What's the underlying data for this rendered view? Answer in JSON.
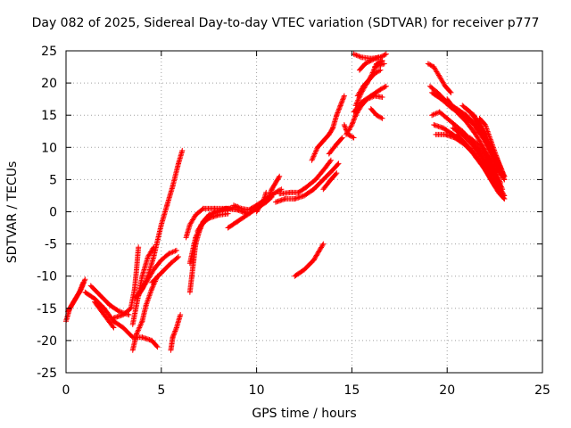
{
  "chart_data": {
    "type": "scatter",
    "title": "Day 082 of 2025, Sidereal Day-to-day VTEC variation (SDTVAR) for receiver p777",
    "xlabel": "GPS time / hours",
    "ylabel": "SDTVAR / TECUs",
    "xlim": [
      0,
      25
    ],
    "ylim": [
      -25,
      25
    ],
    "xticks": [
      "0",
      "5",
      "10",
      "15",
      "20",
      "25"
    ],
    "yticks": [
      "25",
      "20",
      "15",
      "10",
      "5",
      "0",
      "-5",
      "-10",
      "-15",
      "-20",
      "-25"
    ],
    "grid": true,
    "marker": "+",
    "color": "#ff0000",
    "tracks": [
      [
        [
          0.0,
          -17.0
        ],
        [
          0.2,
          -15.0
        ],
        [
          0.5,
          -13.5
        ],
        [
          0.8,
          -12.0
        ],
        [
          1.0,
          -10.5
        ]
      ],
      [
        [
          0.1,
          -15.5
        ],
        [
          0.4,
          -14.0
        ],
        [
          0.7,
          -12.5
        ],
        [
          0.9,
          -11.0
        ]
      ],
      [
        [
          1.0,
          -12.5
        ],
        [
          1.5,
          -13.5
        ],
        [
          2.0,
          -15.0
        ],
        [
          2.5,
          -17.0
        ],
        [
          3.0,
          -18.0
        ],
        [
          3.5,
          -19.5
        ],
        [
          4.0,
          -19.5
        ],
        [
          4.5,
          -20.0
        ],
        [
          4.8,
          -21.0
        ]
      ],
      [
        [
          1.3,
          -11.5
        ],
        [
          1.8,
          -13.0
        ],
        [
          2.3,
          -14.5
        ],
        [
          2.8,
          -15.5
        ],
        [
          3.3,
          -16.0
        ]
      ],
      [
        [
          1.5,
          -14.0
        ],
        [
          2.0,
          -16.0
        ],
        [
          2.5,
          -18.0
        ]
      ],
      [
        [
          2.5,
          -16.5
        ],
        [
          3.0,
          -16.0
        ],
        [
          3.4,
          -15.0
        ],
        [
          3.6,
          -12.0
        ],
        [
          3.7,
          -9.0
        ],
        [
          3.8,
          -5.5
        ]
      ],
      [
        [
          3.5,
          -21.5
        ],
        [
          3.7,
          -19.0
        ],
        [
          4.0,
          -17.0
        ],
        [
          4.2,
          -14.5
        ],
        [
          4.5,
          -12.0
        ],
        [
          4.8,
          -10.0
        ]
      ],
      [
        [
          3.5,
          -17.5
        ],
        [
          3.8,
          -13.0
        ],
        [
          4.0,
          -10.0
        ],
        [
          4.3,
          -7.0
        ],
        [
          4.6,
          -5.5
        ]
      ],
      [
        [
          3.6,
          -13.5
        ],
        [
          4.0,
          -12.0
        ],
        [
          4.3,
          -10.0
        ],
        [
          4.6,
          -7.0
        ],
        [
          4.8,
          -4.5
        ],
        [
          5.0,
          -2.0
        ],
        [
          5.3,
          1.0
        ],
        [
          5.6,
          4.0
        ],
        [
          5.9,
          7.5
        ],
        [
          6.1,
          9.5
        ]
      ],
      [
        [
          3.8,
          -13.0
        ],
        [
          4.2,
          -11.0
        ],
        [
          4.6,
          -9.0
        ],
        [
          5.0,
          -7.5
        ],
        [
          5.4,
          -6.5
        ],
        [
          5.8,
          -6.0
        ]
      ],
      [
        [
          4.5,
          -11.0
        ],
        [
          5.0,
          -9.5
        ],
        [
          5.5,
          -8.0
        ],
        [
          5.9,
          -7.0
        ]
      ],
      [
        [
          5.5,
          -21.5
        ],
        [
          5.6,
          -19.5
        ],
        [
          5.8,
          -18.0
        ],
        [
          6.0,
          -16.0
        ]
      ],
      [
        [
          6.3,
          -4.0
        ],
        [
          6.5,
          -2.0
        ],
        [
          6.8,
          -0.5
        ],
        [
          7.2,
          0.5
        ],
        [
          7.8,
          0.5
        ],
        [
          8.5,
          0.5
        ],
        [
          9.0,
          0.8
        ]
      ],
      [
        [
          6.5,
          -12.5
        ],
        [
          6.6,
          -10.0
        ],
        [
          6.7,
          -7.5
        ],
        [
          6.8,
          -5.0
        ],
        [
          7.0,
          -3.0
        ],
        [
          7.2,
          -1.5
        ],
        [
          7.5,
          -0.5
        ],
        [
          8.0,
          0.0
        ],
        [
          8.5,
          0.2
        ]
      ],
      [
        [
          6.5,
          -8.0
        ],
        [
          6.8,
          -4.0
        ],
        [
          7.1,
          -2.0
        ],
        [
          7.5,
          -1.0
        ],
        [
          8.0,
          -0.5
        ],
        [
          8.5,
          -0.3
        ]
      ],
      [
        [
          6.9,
          -3.0
        ],
        [
          7.3,
          -1.2
        ],
        [
          7.8,
          0.0
        ],
        [
          8.4,
          0.5
        ],
        [
          9.0,
          0.3
        ],
        [
          9.5,
          -0.3
        ]
      ],
      [
        [
          8.5,
          -2.5
        ],
        [
          9.0,
          -1.5
        ],
        [
          9.5,
          -0.5
        ],
        [
          10.0,
          0.5
        ],
        [
          10.5,
          1.5
        ],
        [
          10.8,
          2.3
        ]
      ],
      [
        [
          8.8,
          1.0
        ],
        [
          9.2,
          0.5
        ],
        [
          9.6,
          0.3
        ],
        [
          10.0,
          1.0
        ],
        [
          10.5,
          2.0
        ],
        [
          11.0,
          3.0
        ],
        [
          11.3,
          3.5
        ]
      ],
      [
        [
          10.0,
          0.0
        ],
        [
          10.2,
          1.0
        ],
        [
          10.4,
          2.0
        ],
        [
          10.5,
          3.0
        ]
      ],
      [
        [
          10.6,
          2.0
        ],
        [
          10.8,
          3.5
        ],
        [
          11.0,
          4.5
        ],
        [
          11.2,
          5.5
        ]
      ],
      [
        [
          11.0,
          1.5
        ],
        [
          11.5,
          2.0
        ],
        [
          12.0,
          2.0
        ],
        [
          12.5,
          2.5
        ],
        [
          13.0,
          3.5
        ],
        [
          13.5,
          5.0
        ],
        [
          14.0,
          6.5
        ],
        [
          14.3,
          7.5
        ]
      ],
      [
        [
          11.2,
          2.8
        ],
        [
          11.8,
          3.0
        ],
        [
          12.2,
          3.0
        ],
        [
          12.6,
          3.8
        ],
        [
          13.1,
          5.0
        ],
        [
          13.6,
          6.8
        ],
        [
          13.9,
          8.0
        ]
      ],
      [
        [
          12.0,
          -10.0
        ],
        [
          12.5,
          -9.0
        ],
        [
          13.0,
          -7.5
        ],
        [
          13.5,
          -5.0
        ]
      ],
      [
        [
          12.9,
          8.0
        ],
        [
          13.2,
          10.0
        ],
        [
          13.5,
          11.0
        ],
        [
          13.8,
          12.0
        ],
        [
          14.0,
          13.0
        ]
      ],
      [
        [
          13.5,
          3.5
        ],
        [
          13.9,
          5.0
        ],
        [
          14.2,
          6.0
        ]
      ],
      [
        [
          13.8,
          9.0
        ],
        [
          14.2,
          10.5
        ],
        [
          14.5,
          11.5
        ]
      ],
      [
        [
          14.0,
          13.0
        ],
        [
          14.2,
          15.0
        ],
        [
          14.4,
          16.5
        ],
        [
          14.6,
          18.0
        ]
      ],
      [
        [
          14.6,
          13.5
        ],
        [
          14.8,
          12.0
        ],
        [
          15.1,
          11.5
        ]
      ],
      [
        [
          14.7,
          12.0
        ],
        [
          15.0,
          13.5
        ],
        [
          15.2,
          15.0
        ],
        [
          15.5,
          16.5
        ],
        [
          15.8,
          17.5
        ],
        [
          16.2,
          18.0
        ],
        [
          16.6,
          17.8
        ]
      ],
      [
        [
          15.1,
          15.5
        ],
        [
          15.5,
          17.0
        ],
        [
          16.0,
          18.0
        ],
        [
          16.5,
          19.0
        ],
        [
          16.8,
          19.5
        ]
      ],
      [
        [
          15.3,
          18.0
        ],
        [
          15.6,
          19.5
        ],
        [
          15.9,
          20.5
        ],
        [
          16.2,
          21.5
        ],
        [
          16.5,
          22.0
        ]
      ],
      [
        [
          15.2,
          16.5
        ],
        [
          15.5,
          18.5
        ],
        [
          15.8,
          20.0
        ],
        [
          16.0,
          21.0
        ],
        [
          16.3,
          23.0
        ],
        [
          16.6,
          23.5
        ]
      ],
      [
        [
          15.1,
          24.5
        ],
        [
          15.5,
          24.0
        ],
        [
          16.0,
          23.8
        ],
        [
          16.5,
          24.0
        ],
        [
          16.8,
          24.5
        ]
      ],
      [
        [
          15.4,
          22.0
        ],
        [
          15.7,
          23.0
        ],
        [
          16.0,
          23.5
        ],
        [
          16.4,
          24.0
        ]
      ],
      [
        [
          16.0,
          16.0
        ],
        [
          16.3,
          15.0
        ],
        [
          16.6,
          14.5
        ]
      ],
      [
        [
          16.2,
          22.5
        ],
        [
          16.5,
          22.8
        ],
        [
          16.7,
          23.0
        ]
      ],
      [
        [
          19.0,
          23.0
        ],
        [
          19.3,
          22.5
        ],
        [
          19.6,
          21.0
        ],
        [
          19.9,
          19.5
        ],
        [
          20.2,
          18.5
        ]
      ],
      [
        [
          19.1,
          19.5
        ],
        [
          19.5,
          18.5
        ],
        [
          20.0,
          17.0
        ],
        [
          20.5,
          16.0
        ],
        [
          21.0,
          15.0
        ],
        [
          21.5,
          13.5
        ],
        [
          22.0,
          11.0
        ],
        [
          22.5,
          8.0
        ],
        [
          23.0,
          5.0
        ]
      ],
      [
        [
          19.2,
          18.5
        ],
        [
          19.7,
          17.5
        ],
        [
          20.2,
          16.2
        ],
        [
          20.7,
          15.2
        ],
        [
          21.2,
          14.2
        ],
        [
          21.7,
          12.5
        ],
        [
          22.2,
          10.0
        ],
        [
          22.7,
          7.0
        ],
        [
          23.0,
          5.5
        ]
      ],
      [
        [
          19.2,
          15.0
        ],
        [
          19.6,
          15.5
        ],
        [
          20.0,
          14.5
        ],
        [
          20.4,
          13.5
        ],
        [
          20.8,
          12.5
        ],
        [
          21.3,
          11.0
        ],
        [
          21.8,
          8.5
        ],
        [
          22.3,
          6.0
        ],
        [
          22.8,
          3.5
        ],
        [
          23.0,
          2.5
        ]
      ],
      [
        [
          19.3,
          13.5
        ],
        [
          19.8,
          13.0
        ],
        [
          20.3,
          12.0
        ],
        [
          20.8,
          11.0
        ],
        [
          21.3,
          9.5
        ],
        [
          21.8,
          7.5
        ],
        [
          22.3,
          5.0
        ],
        [
          22.7,
          3.0
        ],
        [
          23.0,
          2.0
        ]
      ],
      [
        [
          19.4,
          12.0
        ],
        [
          19.9,
          12.0
        ],
        [
          20.4,
          11.5
        ],
        [
          20.9,
          10.5
        ],
        [
          21.4,
          9.0
        ],
        [
          21.9,
          7.0
        ],
        [
          22.4,
          4.5
        ],
        [
          22.9,
          2.5
        ]
      ],
      [
        [
          20.0,
          17.5
        ],
        [
          20.5,
          15.5
        ],
        [
          21.0,
          14.0
        ],
        [
          21.5,
          12.0
        ],
        [
          22.0,
          9.5
        ],
        [
          22.5,
          7.0
        ],
        [
          22.9,
          5.5
        ]
      ],
      [
        [
          20.3,
          13.0
        ],
        [
          20.8,
          12.0
        ],
        [
          21.3,
          10.5
        ],
        [
          21.8,
          8.5
        ],
        [
          22.3,
          6.5
        ],
        [
          22.8,
          4.0
        ]
      ],
      [
        [
          20.5,
          12.0
        ],
        [
          21.0,
          10.5
        ],
        [
          21.5,
          8.5
        ],
        [
          22.0,
          6.5
        ],
        [
          22.5,
          4.0
        ],
        [
          23.0,
          2.0
        ]
      ],
      [
        [
          20.8,
          16.5
        ],
        [
          21.2,
          15.5
        ],
        [
          21.6,
          14.0
        ],
        [
          22.0,
          12.0
        ],
        [
          22.4,
          9.5
        ],
        [
          22.8,
          7.0
        ],
        [
          23.0,
          5.5
        ]
      ],
      [
        [
          21.0,
          16.0
        ],
        [
          21.4,
          15.0
        ],
        [
          21.8,
          13.0
        ],
        [
          22.2,
          10.0
        ],
        [
          22.6,
          7.5
        ],
        [
          23.0,
          5.0
        ]
      ],
      [
        [
          21.2,
          11.5
        ],
        [
          21.6,
          10.5
        ],
        [
          22.0,
          9.0
        ],
        [
          22.4,
          7.0
        ],
        [
          22.8,
          4.5
        ]
      ],
      [
        [
          21.3,
          10.5
        ],
        [
          21.7,
          9.5
        ],
        [
          22.1,
          8.0
        ],
        [
          22.5,
          6.0
        ],
        [
          22.9,
          3.5
        ]
      ],
      [
        [
          21.5,
          13.0
        ],
        [
          21.9,
          11.5
        ],
        [
          22.3,
          9.5
        ],
        [
          22.7,
          7.0
        ],
        [
          23.0,
          5.5
        ]
      ],
      [
        [
          21.7,
          14.5
        ],
        [
          22.0,
          13.5
        ],
        [
          22.3,
          11.0
        ],
        [
          22.6,
          8.5
        ],
        [
          22.9,
          6.0
        ]
      ]
    ]
  }
}
